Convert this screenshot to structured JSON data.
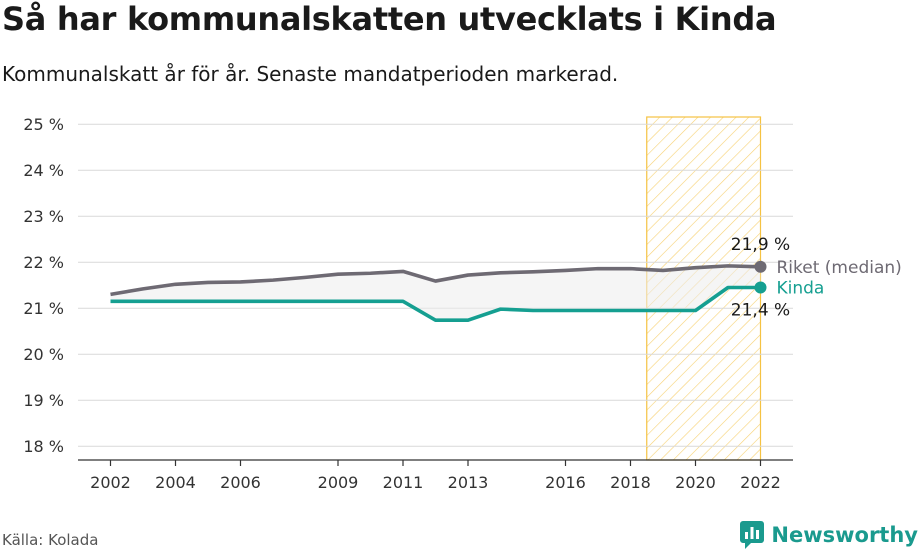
{
  "title": "Så har kommunalskatten utvecklats i Kinda",
  "subtitle": "Kommunalskatt år för år. Senaste mandatperioden markerad.",
  "source": "Källa: Kolada",
  "logo_text": "Newsworthy",
  "colors": {
    "riket": "#6e6a73",
    "kinda": "#159f91",
    "highlight": "#f5c242",
    "grid": "#d9d9d9"
  },
  "chart_data": {
    "type": "line",
    "x": [
      2002,
      2003,
      2004,
      2005,
      2006,
      2007,
      2008,
      2009,
      2010,
      2011,
      2012,
      2013,
      2014,
      2015,
      2016,
      2017,
      2018,
      2019,
      2020,
      2021,
      2022
    ],
    "series": [
      {
        "name": "Riket (median)",
        "values": [
          21.3,
          21.42,
          21.52,
          21.56,
          21.57,
          21.61,
          21.67,
          21.74,
          21.76,
          21.8,
          21.59,
          21.72,
          21.77,
          21.79,
          21.82,
          21.86,
          21.86,
          21.82,
          21.88,
          21.92,
          21.9
        ],
        "end_label": "21,9 %"
      },
      {
        "name": "Kinda",
        "values": [
          21.15,
          21.15,
          21.15,
          21.15,
          21.15,
          21.15,
          21.15,
          21.15,
          21.15,
          21.15,
          20.74,
          20.74,
          20.98,
          20.95,
          20.95,
          20.95,
          20.95,
          20.95,
          20.95,
          21.45,
          21.45
        ],
        "end_label": "21,4 %"
      }
    ],
    "ylim": [
      17.7,
      25.2
    ],
    "xlim": [
      2001.0,
      2023.0
    ],
    "y_ticks": [
      18,
      19,
      20,
      21,
      22,
      23,
      24,
      25
    ],
    "y_tick_labels": [
      "18 %",
      "19 %",
      "20 %",
      "21 %",
      "22 %",
      "23 %",
      "24 %",
      "25 %"
    ],
    "x_ticks": [
      2002,
      2004,
      2006,
      2009,
      2011,
      2013,
      2016,
      2018,
      2020,
      2022
    ],
    "x_tick_labels": [
      "2002",
      "2004",
      "2006",
      "2009",
      "2011",
      "2013",
      "2016",
      "2018",
      "2020",
      "2022"
    ],
    "highlight_range": [
      2018.5,
      2022.0
    ],
    "grid": true
  }
}
